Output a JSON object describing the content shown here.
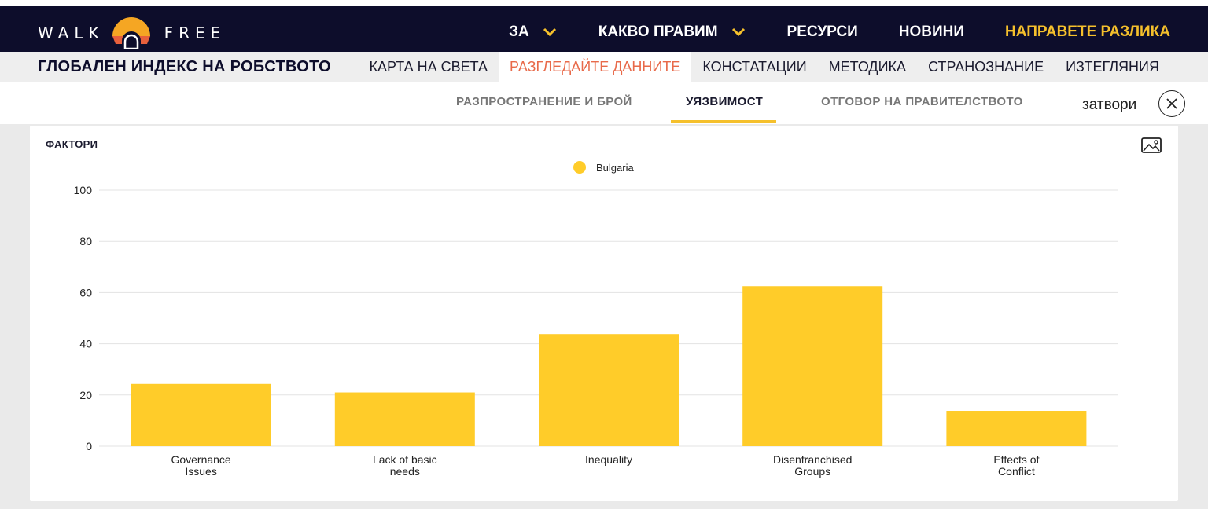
{
  "brand": {
    "logo_left": "WALK",
    "logo_right": "FREE",
    "colors": {
      "navy": "#0d0d2b",
      "gold": "#f5c02c",
      "orange": "#e86a4a"
    }
  },
  "main_nav": [
    {
      "label": "ЗА",
      "has_dropdown": true
    },
    {
      "label": "КАКВО ПРАВИМ",
      "has_dropdown": true
    },
    {
      "label": "РЕСУРСИ",
      "has_dropdown": false
    },
    {
      "label": "НОВИНИ",
      "has_dropdown": false
    },
    {
      "label": "НАПРАВЕТЕ РАЗЛИКА",
      "has_dropdown": false,
      "accent": true
    }
  ],
  "site_title": "ГЛОБАЛЕН ИНДЕКС НА РОБСТВОТО",
  "sub_nav": [
    {
      "label": "КАРТА НА СВЕТА"
    },
    {
      "label": "РАЗГЛЕДАЙТЕ ДАННИТЕ",
      "active": true
    },
    {
      "label": "КОНСТАТАЦИИ"
    },
    {
      "label": "МЕТОДИКА"
    },
    {
      "label": "СТРАНОЗНАНИЕ"
    },
    {
      "label": "ИЗТЕГЛЯНИЯ"
    }
  ],
  "tabs": [
    {
      "label": "РАЗПРОСТРАНЕНИЕ И БРОЙ"
    },
    {
      "label": "УЯЗВИМОСТ",
      "active": true
    },
    {
      "label": "ОТГОВОР НА ПРАВИТЕЛСТВОТО"
    }
  ],
  "close_label": "затвори",
  "icons": {
    "close": "close-icon",
    "export": "image-export-icon",
    "dropdown": "chevron-down-icon"
  },
  "chart_data": {
    "type": "bar",
    "title": "ФАКТОРИ",
    "categories": [
      [
        "Governance",
        "Issues"
      ],
      [
        "Lack of basic",
        "needs"
      ],
      [
        "Inequality"
      ],
      [
        "Disenfranchised",
        "Groups"
      ],
      [
        "Effects of",
        "Conflict"
      ]
    ],
    "series": [
      {
        "name": "Bulgaria",
        "color": "#ffcc29",
        "values": [
          24.3,
          21,
          43.8,
          62.5,
          13.8
        ]
      }
    ],
    "ylim": [
      0,
      100
    ],
    "yticks": [
      0,
      20,
      40,
      60,
      80,
      100
    ],
    "grid": true,
    "legend": "top-center"
  }
}
